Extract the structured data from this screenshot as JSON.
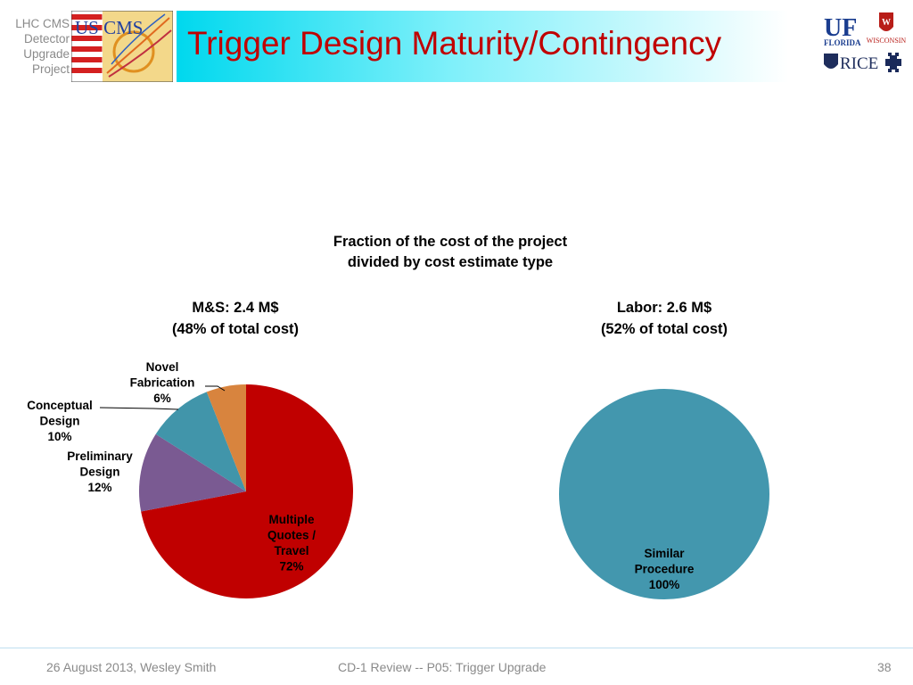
{
  "header": {
    "project_label": [
      "LHC CMS",
      "Detector",
      "Upgrade",
      "Project"
    ],
    "title": "Trigger Design Maturity/Contingency",
    "logo_text": "US CMS"
  },
  "institutions": {
    "uf_top": "UF",
    "uf_bottom": "FLORIDA",
    "wisconsin": "WISCONSIN",
    "rice": "RICE"
  },
  "chart_data": [
    {
      "type": "pie",
      "suptitle": [
        "Fraction of the cost of the project",
        "divided by cost estimate type"
      ],
      "title": [
        "M&S: 2.4 M$",
        "(48% of total cost)"
      ],
      "slices": [
        {
          "label": [
            "Multiple",
            "Quotes /",
            "Travel"
          ],
          "pct_text": "72%",
          "value": 72,
          "color": "#c00000"
        },
        {
          "label": [
            "Preliminary",
            "Design"
          ],
          "pct_text": "12%",
          "value": 12,
          "color": "#7a5a92"
        },
        {
          "label": [
            "Conceptual",
            "Design"
          ],
          "pct_text": "10%",
          "value": 10,
          "color": "#4195aa"
        },
        {
          "label": [
            "Novel",
            "Fabrication"
          ],
          "pct_text": "6%",
          "value": 6,
          "color": "#d8843e"
        }
      ]
    },
    {
      "type": "pie",
      "title": [
        "Labor: 2.6 M$",
        "(52% of total cost)"
      ],
      "slices": [
        {
          "label": [
            "Similar",
            "Procedure"
          ],
          "pct_text": "100%",
          "value": 100,
          "color": "#4397ae"
        }
      ]
    }
  ],
  "footer": {
    "left": "26 August 2013, Wesley Smith",
    "center": "CD-1  Review -- P05: Trigger Upgrade",
    "page": "38"
  }
}
